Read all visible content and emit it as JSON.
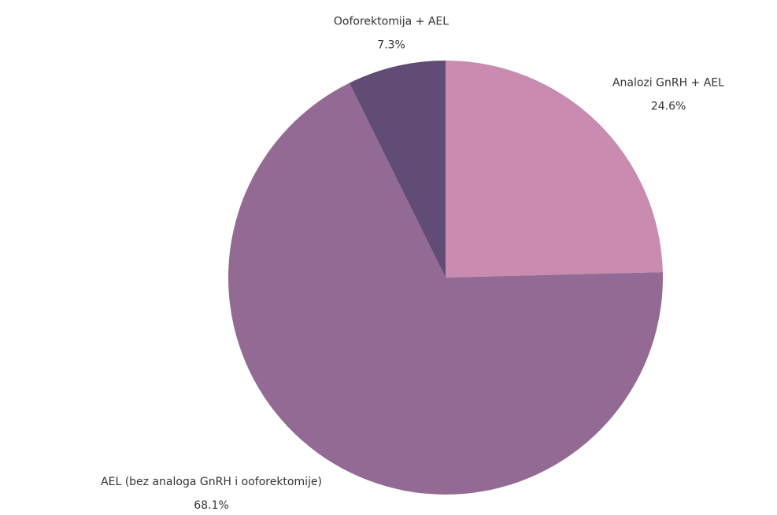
{
  "chart_data": {
    "type": "pie",
    "categories": [
      "Analozi GnRH + AEL",
      "AEL (bez analoga GnRH i ooforektomije)",
      "Ooforektomija + AEL"
    ],
    "values": [
      24.6,
      68.1,
      7.3
    ],
    "value_labels": [
      "24.6%",
      "68.1%",
      "7.3%"
    ],
    "colors": [
      "#c98bb0",
      "#936a93",
      "#614c75"
    ]
  }
}
